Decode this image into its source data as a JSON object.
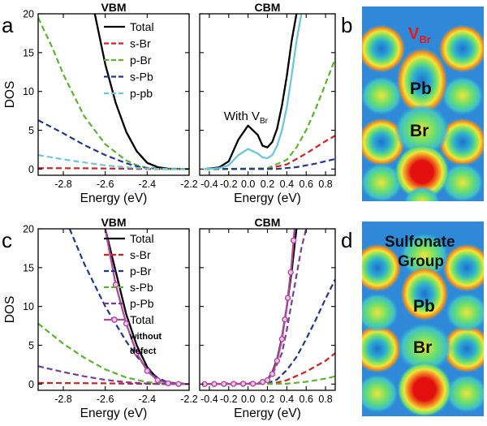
{
  "figure": {
    "panel_labels": [
      "a",
      "b",
      "c",
      "d"
    ],
    "map_b_labels": {
      "vacancy_main": "V",
      "vacancy_sub": "Br",
      "upper": "Pb",
      "lower": "Br"
    },
    "map_d_labels": {
      "group_line1": "Sulfonate",
      "group_line2": "Group",
      "upper": "Pb",
      "lower": "Br"
    }
  },
  "chart_data": [
    {
      "id": "a-vbm",
      "type": "line",
      "title": "VBM",
      "xlabel": "Energy (eV)",
      "ylabel": "DOS",
      "xlim": [
        -2.92,
        -2.2
      ],
      "ylim": [
        -0.8,
        20
      ],
      "xticks": [
        -2.8,
        -2.6,
        -2.4,
        -2.2
      ],
      "xtick_labels": [
        "-2.8",
        "-2.6",
        "-2.4",
        "-2.2"
      ],
      "yticks": [
        0,
        5,
        10,
        15,
        20
      ],
      "ytick_labels": [
        "0",
        "5",
        "10",
        "15",
        "20"
      ],
      "legend": {
        "position": "top-right",
        "entries": [
          {
            "label": "Total",
            "color": "#000000",
            "dash": "solid"
          },
          {
            "label": "s-Br",
            "color": "#d62020",
            "dash": "dashed"
          },
          {
            "label": "p-Br",
            "color": "#5ab52a",
            "dash": "dashed"
          },
          {
            "label": "s-Pb",
            "color": "#23368f",
            "dash": "dashed"
          },
          {
            "label": "p-pb",
            "color": "#6cc8d8",
            "dash": "dashed"
          }
        ]
      },
      "series": [
        {
          "name": "Total",
          "color": "#000000",
          "dash": "solid",
          "x": [
            -2.65,
            -2.6,
            -2.55,
            -2.5,
            -2.45,
            -2.4,
            -2.35,
            -2.3,
            -2.2
          ],
          "y": [
            20,
            13.5,
            8.5,
            4.8,
            2.3,
            0.8,
            0.25,
            0.05,
            0
          ]
        },
        {
          "name": "s-Br",
          "color": "#d62020",
          "dash": "dashed",
          "x": [
            -2.92,
            -2.7,
            -2.5,
            -2.4,
            -2.2
          ],
          "y": [
            0.12,
            0.1,
            0.05,
            0.01,
            0
          ]
        },
        {
          "name": "p-Br",
          "color": "#5ab52a",
          "dash": "dashed",
          "x": [
            -2.92,
            -2.85,
            -2.8,
            -2.7,
            -2.6,
            -2.5,
            -2.45,
            -2.4,
            -2.35,
            -2.3,
            -2.2
          ],
          "y": [
            19.5,
            15.5,
            12.2,
            6.8,
            3.2,
            1.1,
            0.5,
            0.15,
            0.04,
            0.01,
            0
          ]
        },
        {
          "name": "s-Pb",
          "color": "#23368f",
          "dash": "dashed",
          "x": [
            -2.92,
            -2.8,
            -2.7,
            -2.6,
            -2.5,
            -2.45,
            -2.4,
            -2.3,
            -2.2
          ],
          "y": [
            6.3,
            4.6,
            3.1,
            1.8,
            0.75,
            0.35,
            0.12,
            0.02,
            0
          ]
        },
        {
          "name": "p-pb",
          "color": "#6cc8d8",
          "dash": "dashed",
          "x": [
            -2.92,
            -2.8,
            -2.7,
            -2.6,
            -2.5,
            -2.4,
            -2.3,
            -2.2
          ],
          "y": [
            1.8,
            1.25,
            0.85,
            0.48,
            0.22,
            0.06,
            0.01,
            0
          ]
        }
      ]
    },
    {
      "id": "a-cbm",
      "type": "line",
      "title": "CBM",
      "xlabel": "Energy (eV)",
      "ylabel": "",
      "xlim": [
        -0.5,
        0.9
      ],
      "ylim": [
        -0.8,
        20
      ],
      "xticks": [
        -0.4,
        -0.2,
        0.0,
        0.2,
        0.4,
        0.6,
        0.8
      ],
      "xtick_labels": [
        "-0.4",
        "-0.2",
        "0.0",
        "0.2",
        "0.4",
        "0.6",
        "0.8"
      ],
      "yticks": [
        0,
        5,
        10,
        15,
        20
      ],
      "ytick_labels": [],
      "annotation": {
        "text_main": "With V",
        "text_sub": "Br",
        "x": -0.25,
        "y": 6.3
      },
      "series": [
        {
          "name": "Total",
          "color": "#000000",
          "dash": "solid",
          "x": [
            -0.45,
            -0.3,
            -0.2,
            -0.1,
            0.0,
            0.1,
            0.15,
            0.2,
            0.25,
            0.3,
            0.35,
            0.4,
            0.45,
            0.5
          ],
          "y": [
            0,
            0.2,
            1.0,
            3.8,
            5.6,
            4.4,
            3.0,
            2.8,
            3.5,
            5.2,
            8.2,
            12.0,
            16.5,
            20
          ]
        },
        {
          "name": "s-Br",
          "color": "#d62020",
          "dash": "dashed",
          "x": [
            -0.45,
            0.2,
            0.4,
            0.6,
            0.8,
            0.9
          ],
          "y": [
            0,
            0.05,
            0.6,
            2.0,
            3.6,
            4.3
          ]
        },
        {
          "name": "p-Br",
          "color": "#5ab52a",
          "dash": "dashed",
          "x": [
            -0.45,
            0.2,
            0.4,
            0.5,
            0.6,
            0.7,
            0.8,
            0.9
          ],
          "y": [
            0,
            0.1,
            1.2,
            2.8,
            5.0,
            7.8,
            11.0,
            14.2
          ]
        },
        {
          "name": "s-Pb",
          "color": "#23368f",
          "dash": "dashed",
          "x": [
            -0.45,
            0.3,
            0.5,
            0.7,
            0.9
          ],
          "y": [
            0,
            0.02,
            0.25,
            0.7,
            1.3
          ]
        },
        {
          "name": "p-pb",
          "color": "#6cc8d8",
          "dash": "solid",
          "x": [
            -0.45,
            -0.3,
            -0.2,
            -0.1,
            0.0,
            0.1,
            0.15,
            0.2,
            0.25,
            0.3,
            0.35,
            0.4,
            0.45,
            0.5,
            0.55
          ],
          "y": [
            0,
            0.1,
            0.5,
            1.8,
            2.6,
            2.0,
            1.5,
            1.4,
            1.8,
            3.0,
            5.0,
            8.0,
            12.0,
            16.5,
            20
          ]
        }
      ]
    },
    {
      "id": "c-vbm",
      "type": "line",
      "title": "VBM",
      "xlabel": "Energy (eV)",
      "ylabel": "DOS",
      "xlim": [
        -2.92,
        -2.2
      ],
      "ylim": [
        -0.8,
        20
      ],
      "xticks": [
        -2.8,
        -2.6,
        -2.4,
        -2.2
      ],
      "xtick_labels": [
        "-2.8",
        "-2.6",
        "-2.4",
        "-2.2"
      ],
      "yticks": [
        0,
        5,
        10,
        15,
        20
      ],
      "ytick_labels": [
        "0",
        "5",
        "10",
        "15",
        "20"
      ],
      "legend": {
        "position": "top-right",
        "entries": [
          {
            "label": "Total",
            "color": "#000000",
            "dash": "solid"
          },
          {
            "label": "s-Br",
            "color": "#d62020",
            "dash": "dashed"
          },
          {
            "label": "p-Br",
            "color": "#23368f",
            "dash": "dashed"
          },
          {
            "label": "s-Pb",
            "color": "#5ab52a",
            "dash": "dashed"
          },
          {
            "label": "p-Pb",
            "color": "#7a3c9c",
            "dash": "dashed"
          },
          {
            "label": "Total",
            "color": "#b0489a",
            "dash": "marker",
            "extra_lines": [
              "without",
              "defect"
            ]
          }
        ]
      },
      "series": [
        {
          "name": "Total",
          "color": "#000000",
          "dash": "solid",
          "x": [
            -2.6,
            -2.55,
            -2.5,
            -2.45,
            -2.4,
            -2.35,
            -2.3,
            -2.2
          ],
          "y": [
            20,
            14.5,
            9.0,
            5.0,
            2.2,
            0.6,
            0.1,
            0
          ]
        },
        {
          "name": "s-Br",
          "color": "#d62020",
          "dash": "dashed",
          "x": [
            -2.92,
            -2.6,
            -2.4,
            -2.3,
            -2.2
          ],
          "y": [
            0.15,
            0.1,
            0.03,
            0.01,
            0
          ]
        },
        {
          "name": "p-Br",
          "color": "#23368f",
          "dash": "dashed",
          "x": [
            -2.77,
            -2.7,
            -2.6,
            -2.5,
            -2.45,
            -2.4,
            -2.35,
            -2.3,
            -2.2
          ],
          "y": [
            20,
            15.5,
            10.0,
            5.5,
            3.6,
            2.0,
            0.8,
            0.2,
            0
          ]
        },
        {
          "name": "s-Pb",
          "color": "#5ab52a",
          "dash": "dashed",
          "x": [
            -2.92,
            -2.8,
            -2.7,
            -2.6,
            -2.5,
            -2.4,
            -2.3,
            -2.2
          ],
          "y": [
            7.8,
            5.2,
            3.4,
            1.9,
            0.85,
            0.25,
            0.05,
            0
          ]
        },
        {
          "name": "p-Pb",
          "color": "#7a3c9c",
          "dash": "dashed",
          "x": [
            -2.92,
            -2.8,
            -2.7,
            -2.6,
            -2.5,
            -2.4,
            -2.3,
            -2.2
          ],
          "y": [
            2.3,
            1.55,
            1.0,
            0.55,
            0.25,
            0.07,
            0.01,
            0
          ]
        },
        {
          "name": "Total without defect",
          "color": "#b0489a",
          "dash": "solid",
          "marker": true,
          "x": [
            -2.6,
            -2.55,
            -2.5,
            -2.45,
            -2.4,
            -2.35,
            -2.3,
            -2.25,
            -2.2
          ],
          "y": [
            20,
            12.8,
            7.8,
            4.0,
            1.7,
            0.5,
            0.1,
            0.02,
            0
          ],
          "marker_x": [
            -2.55,
            -2.5,
            -2.45,
            -2.4,
            -2.35,
            -2.3,
            -2.25
          ]
        }
      ]
    },
    {
      "id": "c-cbm",
      "type": "line",
      "title": "CBM",
      "xlabel": "Energy (eV)",
      "ylabel": "",
      "xlim": [
        -0.5,
        0.9
      ],
      "ylim": [
        -0.8,
        20
      ],
      "xticks": [
        -0.4,
        -0.2,
        0.0,
        0.2,
        0.4,
        0.6,
        0.8
      ],
      "xtick_labels": [
        "-0.4",
        "-0.2",
        "0.0",
        "0.2",
        "0.4",
        "0.6",
        "0.8"
      ],
      "yticks": [
        0,
        5,
        10,
        15,
        20
      ],
      "ytick_labels": [],
      "series": [
        {
          "name": "Total",
          "color": "#000000",
          "dash": "solid",
          "x": [
            -0.45,
            0.1,
            0.2,
            0.25,
            0.3,
            0.35,
            0.4,
            0.45,
            0.5
          ],
          "y": [
            0,
            0.05,
            0.6,
            1.5,
            3.2,
            6.0,
            10.0,
            14.5,
            20
          ]
        },
        {
          "name": "s-Br",
          "color": "#d62020",
          "dash": "dashed",
          "x": [
            -0.45,
            0.25,
            0.4,
            0.6,
            0.8,
            0.9
          ],
          "y": [
            0,
            0.05,
            0.5,
            1.6,
            3.0,
            4.0
          ]
        },
        {
          "name": "p-Br",
          "color": "#23368f",
          "dash": "dashed",
          "x": [
            -0.45,
            0.2,
            0.3,
            0.4,
            0.5,
            0.6,
            0.7,
            0.8,
            0.9
          ],
          "y": [
            0,
            0.1,
            0.6,
            1.8,
            3.5,
            5.8,
            8.3,
            11.0,
            13.5
          ]
        },
        {
          "name": "s-Pb",
          "color": "#5ab52a",
          "dash": "dashed",
          "x": [
            -0.45,
            0.4,
            0.6,
            0.8,
            0.9
          ],
          "y": [
            0,
            0.05,
            0.3,
            0.7,
            1.0
          ]
        },
        {
          "name": "p-Pb",
          "color": "#7a3c9c",
          "dash": "dashed",
          "x": [
            -0.45,
            0.15,
            0.25,
            0.35,
            0.4,
            0.45,
            0.5,
            0.55,
            0.6
          ],
          "y": [
            0,
            0.2,
            1.2,
            4.0,
            7.0,
            10.5,
            14.0,
            17.5,
            20
          ]
        },
        {
          "name": "Total without defect",
          "color": "#b0489a",
          "dash": "solid",
          "marker": true,
          "x": [
            -0.45,
            0.1,
            0.2,
            0.25,
            0.3,
            0.35,
            0.4,
            0.45,
            0.48
          ],
          "y": [
            0,
            0.05,
            0.5,
            1.3,
            3.0,
            5.8,
            10.0,
            15.5,
            20
          ],
          "marker_x": [
            -0.45,
            -0.35,
            -0.25,
            -0.15,
            -0.05,
            0.05,
            0.15,
            0.2,
            0.25,
            0.3,
            0.35,
            0.38,
            0.41,
            0.44,
            0.47
          ]
        }
      ]
    }
  ]
}
